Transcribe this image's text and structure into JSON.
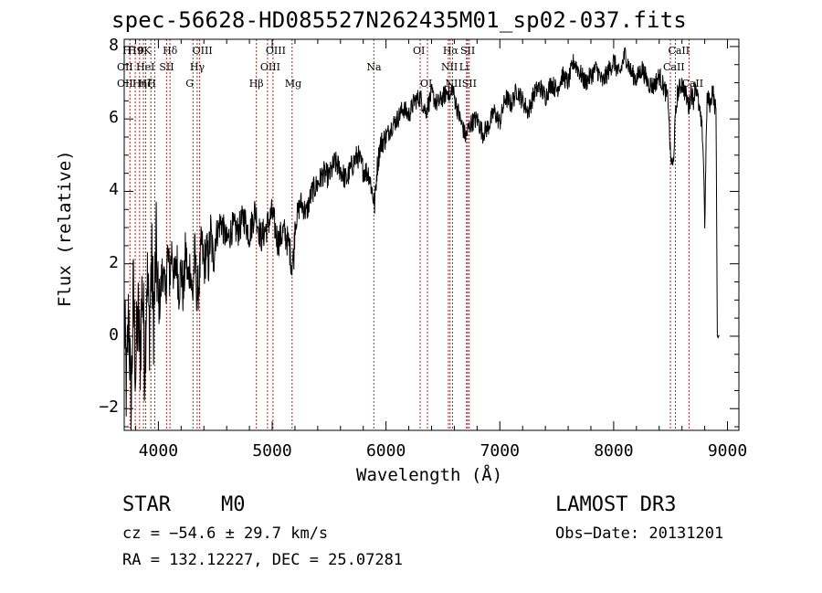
{
  "chart_data": {
    "type": "line",
    "title": "spec-56628-HD085527N262435M01_sp02-037.fits",
    "xlabel": "Wavelength (Å)",
    "ylabel": "Flux (relative)",
    "xlim": [
      3700,
      9100
    ],
    "ylim": [
      -2.6,
      8.2
    ],
    "xticks": [
      4000,
      5000,
      6000,
      7000,
      8000,
      9000
    ],
    "yticks": [
      -2,
      0,
      2,
      4,
      6,
      8
    ],
    "xtick_labels": [
      "4000",
      "5000",
      "6000",
      "7000",
      "8000",
      "9000"
    ],
    "ytick_labels": [
      "−2",
      "0",
      "2",
      "4",
      "6",
      "8"
    ],
    "series": [
      {
        "name": "spectrum",
        "x": [
          3700,
          3720,
          3740,
          3760,
          3780,
          3800,
          3820,
          3840,
          3860,
          3880,
          3900,
          3920,
          3940,
          3960,
          3980,
          4000,
          4020,
          4040,
          4060,
          4080,
          4100,
          4120,
          4140,
          4160,
          4180,
          4200,
          4220,
          4240,
          4260,
          4280,
          4300,
          4320,
          4340,
          4360,
          4380,
          4400,
          4420,
          4440,
          4460,
          4480,
          4500,
          4550,
          4600,
          4650,
          4700,
          4750,
          4800,
          4850,
          4900,
          4950,
          5000,
          5050,
          5100,
          5150,
          5170,
          5190,
          5200,
          5250,
          5300,
          5350,
          5400,
          5450,
          5500,
          5550,
          5600,
          5650,
          5700,
          5750,
          5800,
          5850,
          5890,
          5900,
          5920,
          5950,
          6000,
          6050,
          6100,
          6150,
          6200,
          6250,
          6300,
          6350,
          6400,
          6450,
          6500,
          6550,
          6563,
          6580,
          6600,
          6650,
          6700,
          6720,
          6750,
          6800,
          6850,
          6900,
          6950,
          7000,
          7050,
          7100,
          7150,
          7200,
          7250,
          7300,
          7350,
          7400,
          7450,
          7500,
          7550,
          7600,
          7650,
          7700,
          7750,
          7800,
          7850,
          7900,
          7950,
          8000,
          8050,
          8100,
          8150,
          8200,
          8250,
          8300,
          8350,
          8400,
          8450,
          8480,
          8498,
          8520,
          8542,
          8560,
          8600,
          8640,
          8662,
          8680,
          8700,
          8720,
          8750,
          8780,
          8790,
          8800,
          8820,
          8850,
          8870,
          8880,
          8900,
          8910,
          8930
        ],
        "y": [
          0.5,
          -1.5,
          0.8,
          -2.2,
          1.2,
          -1.0,
          0.6,
          -0.5,
          1.5,
          -0.8,
          1.8,
          0.2,
          2.1,
          0.4,
          2.5,
          0.8,
          1.2,
          2.0,
          1.0,
          2.3,
          1.6,
          2.5,
          1.4,
          2.2,
          1.3,
          1.9,
          1.1,
          2.4,
          1.5,
          2.0,
          1.0,
          2.3,
          1.1,
          1.6,
          2.6,
          1.9,
          2.4,
          2.0,
          2.9,
          2.1,
          2.7,
          3.2,
          2.6,
          3.0,
          2.9,
          3.3,
          2.8,
          3.5,
          2.7,
          3.0,
          3.4,
          2.6,
          2.9,
          2.5,
          2.0,
          2.2,
          3.1,
          3.7,
          3.4,
          4.0,
          4.2,
          4.5,
          4.4,
          4.8,
          4.6,
          4.3,
          4.7,
          5.0,
          4.6,
          4.5,
          3.8,
          3.6,
          4.6,
          5.3,
          5.5,
          5.8,
          6.0,
          6.3,
          6.1,
          6.5,
          6.6,
          6.2,
          6.7,
          6.4,
          6.6,
          6.8,
          6.5,
          6.9,
          6.6,
          6.0,
          5.5,
          5.7,
          5.9,
          6.0,
          5.6,
          5.8,
          6.2,
          5.9,
          6.6,
          6.4,
          6.8,
          6.5,
          6.2,
          6.7,
          6.9,
          6.6,
          7.0,
          6.8,
          7.2,
          7.0,
          7.6,
          7.3,
          7.0,
          7.2,
          7.4,
          7.0,
          7.3,
          7.6,
          7.2,
          7.8,
          7.3,
          7.1,
          7.4,
          7.0,
          6.9,
          7.2,
          6.8,
          6.5,
          5.0,
          4.6,
          6.0,
          6.7,
          7.0,
          6.6,
          6.3,
          6.8,
          6.5,
          7.0,
          6.3,
          5.6,
          4.8,
          3.1,
          6.6,
          6.4,
          6.9,
          6.5,
          6.2,
          0.0,
          0.0
        ]
      }
    ],
    "line_markers": [
      {
        "wl": 3750,
        "label": "H10",
        "row": 1
      },
      {
        "wl": 3797,
        "label": "H9",
        "row": 1
      },
      {
        "wl": 3835,
        "label": "Hη",
        "row": 3
      },
      {
        "wl": 3869,
        "label": "HeI",
        "row": 2
      },
      {
        "wl": 3889,
        "label": "Hζ",
        "row": 3
      },
      {
        "wl": 3934,
        "label": "K",
        "row": 1
      },
      {
        "wl": 3968,
        "label": "H",
        "row": 3
      },
      {
        "wl": 4072,
        "label": "SII",
        "row": 2
      },
      {
        "wl": 4102,
        "label": "Hδ",
        "row": 1
      },
      {
        "wl": 4304,
        "label": "G",
        "row": 3
      },
      {
        "wl": 4341,
        "label": "Hγ",
        "row": 2
      },
      {
        "wl": 4363,
        "label": "OIII",
        "row": 1
      },
      {
        "wl": 4861,
        "label": "Hβ",
        "row": 3
      },
      {
        "wl": 4959,
        "label": "OIII",
        "row": 2
      },
      {
        "wl": 5007,
        "label": "OIII",
        "row": 1
      },
      {
        "wl": 5175,
        "label": "Mg",
        "row": 3
      },
      {
        "wl": 5893,
        "label": "Na",
        "row": 2
      },
      {
        "wl": 6300,
        "label": "OI",
        "row": 1
      },
      {
        "wl": 6364,
        "label": "OI",
        "row": 3
      },
      {
        "wl": 6548,
        "label": "NII",
        "row": 2
      },
      {
        "wl": 6563,
        "label": "Hα",
        "row": 1
      },
      {
        "wl": 6584,
        "label": "NII",
        "row": 3
      },
      {
        "wl": 6707,
        "label": "Li",
        "row": 2
      },
      {
        "wl": 6717,
        "label": "SII",
        "row": 1
      },
      {
        "wl": 6731,
        "label": "SII",
        "row": 3
      },
      {
        "wl": 8498,
        "label": "CaII",
        "row": 2
      },
      {
        "wl": 8542,
        "label": "CaII",
        "row": 1
      },
      {
        "wl": 8662,
        "label": "CaII",
        "row": 3
      }
    ],
    "extra_labels": [
      "OII",
      "OII"
    ]
  },
  "info": {
    "class": "STAR",
    "subclass": "M0",
    "survey": "LAMOST DR3",
    "cz": "cz = −54.6 ± 29.7 km/s",
    "obs_date": "Obs−Date: 20131201",
    "radec": "RA = 132.12227, DEC =  25.07281"
  }
}
